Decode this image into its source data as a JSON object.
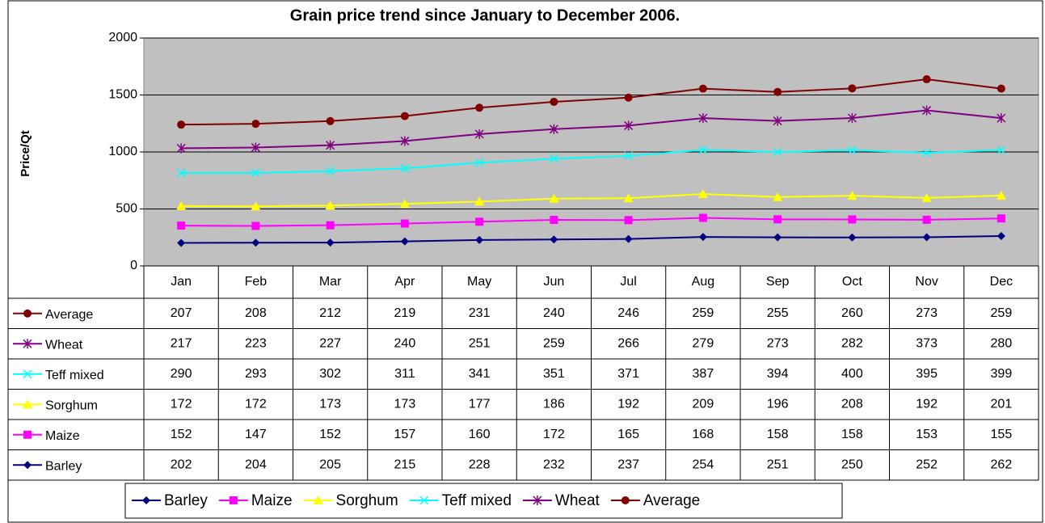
{
  "chart_data": {
    "type": "line",
    "stacked": true,
    "title": "Grain price trend since January to December 2006.",
    "y_label": "Price/Qt",
    "categories": [
      "Jan",
      "Feb",
      "Mar",
      "Apr",
      "May",
      "Jun",
      "Jul",
      "Aug",
      "Sep",
      "Oct",
      "Nov",
      "Dec"
    ],
    "ylim": [
      0,
      2000
    ],
    "yticks": [
      0,
      500,
      1000,
      1500,
      2000
    ],
    "grid": true,
    "data_table": true,
    "legend": "bottom",
    "series": [
      {
        "name": "Barley",
        "color": "#000080",
        "marker": "diamond",
        "values": [
          202,
          204,
          205,
          215,
          228,
          232,
          237,
          254,
          251,
          250,
          252,
          262
        ]
      },
      {
        "name": "Maize",
        "color": "#ff00ff",
        "marker": "square",
        "values": [
          152,
          147,
          152,
          157,
          160,
          172,
          165,
          168,
          158,
          158,
          153,
          155
        ]
      },
      {
        "name": "Sorghum",
        "color": "#ffff00",
        "marker": "triangle",
        "values": [
          172,
          172,
          173,
          173,
          177,
          186,
          192,
          209,
          196,
          208,
          192,
          201
        ]
      },
      {
        "name": "Teff mixed",
        "color": "#00ffff",
        "marker": "x",
        "values": [
          290,
          293,
          302,
          311,
          341,
          351,
          371,
          387,
          394,
          400,
          395,
          399
        ]
      },
      {
        "name": "Wheat",
        "color": "#800080",
        "marker": "star",
        "values": [
          217,
          223,
          227,
          240,
          251,
          259,
          266,
          279,
          273,
          282,
          373,
          280
        ]
      },
      {
        "name": "Average",
        "color": "#800000",
        "marker": "circle",
        "values": [
          207,
          208,
          212,
          219,
          231,
          240,
          246,
          259,
          255,
          260,
          273,
          259
        ]
      }
    ]
  }
}
